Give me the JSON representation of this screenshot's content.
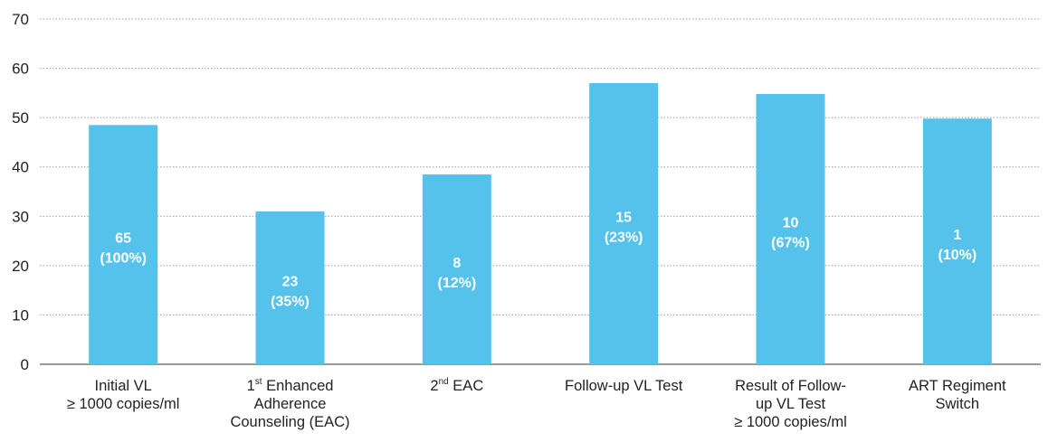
{
  "chart_data": {
    "type": "bar",
    "categories": [
      [
        "Initial VL",
        "≥ 1000 copies/ml"
      ],
      [
        "1st Enhanced",
        "Adherence",
        "Counseling (EAC)"
      ],
      [
        "2nd EAC"
      ],
      [
        "Follow-up VL Test"
      ],
      [
        "Result of Follow-",
        "up VL Test",
        "≥ 1000 copies/ml"
      ],
      [
        "ART Regiment",
        "Switch"
      ]
    ],
    "values": [
      48.5,
      31,
      38.5,
      57,
      54.8,
      49.8
    ],
    "data_labels": [
      [
        "65",
        "(100%)"
      ],
      [
        "23",
        "(35%)"
      ],
      [
        "8",
        "(12%)"
      ],
      [
        "15",
        "(23%)"
      ],
      [
        "10",
        "(67%)"
      ],
      [
        "1",
        "(10%)"
      ]
    ],
    "yticks": [
      0,
      10,
      20,
      30,
      40,
      50,
      60,
      70
    ],
    "ylim": [
      0,
      70
    ],
    "grid": true,
    "bar_color": "#55c2ec",
    "title": "",
    "xlabel": "",
    "ylabel": ""
  }
}
